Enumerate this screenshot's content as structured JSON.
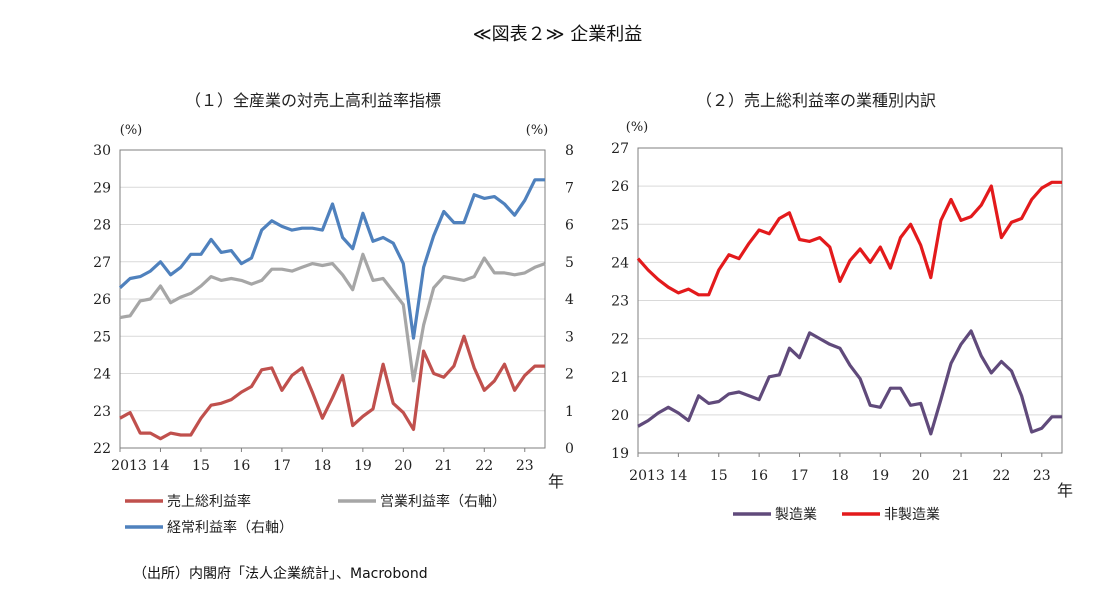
{
  "page": {
    "title": "≪図表２≫ 企業利益",
    "source": "（出所）内閣府「法人企業統計」、Macrobond"
  },
  "chart_data": [
    {
      "type": "line",
      "title": "（１）全産業の対売上高利益率指標",
      "x_ticks": [
        "2013",
        "14",
        "15",
        "16",
        "17",
        "18",
        "19",
        "20",
        "21",
        "22",
        "23"
      ],
      "x_unit": "年",
      "x_range": [
        2013.0,
        2023.5
      ],
      "left_axis": {
        "unit": "(%)",
        "range": [
          22,
          30
        ],
        "ticks": [
          22,
          23,
          24,
          25,
          26,
          27,
          28,
          29,
          30
        ]
      },
      "right_axis": {
        "unit": "(%)",
        "range": [
          0,
          8
        ],
        "ticks": [
          0,
          1,
          2,
          3,
          4,
          5,
          6,
          7,
          8
        ]
      },
      "grid": "horizontal",
      "legend_position": "bottom",
      "series": [
        {
          "name": "売上総利益率",
          "axis": "left",
          "color": "#c0504d",
          "x": [
            2013.0,
            2013.25,
            2013.5,
            2013.75,
            2014.0,
            2014.25,
            2014.5,
            2014.75,
            2015.0,
            2015.25,
            2015.5,
            2015.75,
            2016.0,
            2016.25,
            2016.5,
            2016.75,
            2017.0,
            2017.25,
            2017.5,
            2017.75,
            2018.0,
            2018.25,
            2018.5,
            2018.75,
            2019.0,
            2019.25,
            2019.5,
            2019.75,
            2020.0,
            2020.25,
            2020.5,
            2020.75,
            2021.0,
            2021.25,
            2021.5,
            2021.75,
            2022.0,
            2022.25,
            2022.5,
            2022.75,
            2023.0,
            2023.25,
            2023.5
          ],
          "values": [
            22.8,
            22.95,
            22.4,
            22.4,
            22.25,
            22.4,
            22.35,
            22.35,
            22.8,
            23.15,
            23.2,
            23.3,
            23.5,
            23.65,
            24.1,
            24.15,
            23.55,
            23.95,
            24.15,
            23.5,
            22.8,
            23.35,
            23.95,
            22.6,
            22.85,
            23.05,
            24.25,
            23.2,
            22.95,
            22.5,
            24.6,
            24.0,
            23.9,
            24.2,
            25.0,
            24.15,
            23.55,
            23.8,
            24.25,
            23.55,
            23.95,
            24.2,
            24.2
          ]
        },
        {
          "name": "営業利益率（右軸）",
          "axis": "right",
          "color": "#a6a6a6",
          "x": [
            2013.0,
            2013.25,
            2013.5,
            2013.75,
            2014.0,
            2014.25,
            2014.5,
            2014.75,
            2015.0,
            2015.25,
            2015.5,
            2015.75,
            2016.0,
            2016.25,
            2016.5,
            2016.75,
            2017.0,
            2017.25,
            2017.5,
            2017.75,
            2018.0,
            2018.25,
            2018.5,
            2018.75,
            2019.0,
            2019.25,
            2019.5,
            2019.75,
            2020.0,
            2020.25,
            2020.5,
            2020.75,
            2021.0,
            2021.25,
            2021.5,
            2021.75,
            2022.0,
            2022.25,
            2022.5,
            2022.75,
            2023.0,
            2023.25,
            2023.5
          ],
          "values": [
            3.5,
            3.55,
            3.95,
            4.0,
            4.35,
            3.9,
            4.05,
            4.15,
            4.35,
            4.6,
            4.5,
            4.55,
            4.5,
            4.4,
            4.5,
            4.8,
            4.8,
            4.75,
            4.85,
            4.95,
            4.9,
            4.95,
            4.65,
            4.25,
            5.2,
            4.5,
            4.55,
            4.2,
            3.85,
            1.8,
            3.3,
            4.3,
            4.6,
            4.55,
            4.5,
            4.6,
            5.1,
            4.7,
            4.7,
            4.65,
            4.7,
            4.85,
            4.95
          ]
        },
        {
          "name": "経常利益率（右軸）",
          "axis": "right",
          "color": "#4f81bd",
          "x": [
            2013.0,
            2013.25,
            2013.5,
            2013.75,
            2014.0,
            2014.25,
            2014.5,
            2014.75,
            2015.0,
            2015.25,
            2015.5,
            2015.75,
            2016.0,
            2016.25,
            2016.5,
            2016.75,
            2017.0,
            2017.25,
            2017.5,
            2017.75,
            2018.0,
            2018.25,
            2018.5,
            2018.75,
            2019.0,
            2019.25,
            2019.5,
            2019.75,
            2020.0,
            2020.25,
            2020.5,
            2020.75,
            2021.0,
            2021.25,
            2021.5,
            2021.75,
            2022.0,
            2022.25,
            2022.5,
            2022.75,
            2023.0,
            2023.25,
            2023.5
          ],
          "values": [
            4.3,
            4.55,
            4.6,
            4.75,
            5.0,
            4.65,
            4.85,
            5.2,
            5.2,
            5.6,
            5.25,
            5.3,
            4.95,
            5.1,
            5.85,
            6.1,
            5.95,
            5.85,
            5.9,
            5.9,
            5.85,
            6.55,
            5.65,
            5.35,
            6.3,
            5.55,
            5.65,
            5.5,
            4.95,
            2.95,
            4.85,
            5.7,
            6.35,
            6.05,
            6.05,
            6.8,
            6.7,
            6.75,
            6.55,
            6.25,
            6.65,
            7.2,
            7.2
          ]
        }
      ]
    },
    {
      "type": "line",
      "title": "（２）売上総利益率の業種別内訳",
      "x_ticks": [
        "2013",
        "14",
        "15",
        "16",
        "17",
        "18",
        "19",
        "20",
        "21",
        "22",
        "23"
      ],
      "x_unit": "年",
      "x_range": [
        2013.0,
        2023.5
      ],
      "y_axis": {
        "unit": "(%)",
        "range": [
          19,
          27
        ],
        "ticks": [
          19,
          20,
          21,
          22,
          23,
          24,
          25,
          26,
          27
        ]
      },
      "grid": "horizontal",
      "legend_position": "bottom",
      "series": [
        {
          "name": "製造業",
          "color": "#604a7b",
          "x": [
            2013.0,
            2013.25,
            2013.5,
            2013.75,
            2014.0,
            2014.25,
            2014.5,
            2014.75,
            2015.0,
            2015.25,
            2015.5,
            2015.75,
            2016.0,
            2016.25,
            2016.5,
            2016.75,
            2017.0,
            2017.25,
            2017.5,
            2017.75,
            2018.0,
            2018.25,
            2018.5,
            2018.75,
            2019.0,
            2019.25,
            2019.5,
            2019.75,
            2020.0,
            2020.25,
            2020.5,
            2020.75,
            2021.0,
            2021.25,
            2021.5,
            2021.75,
            2022.0,
            2022.25,
            2022.5,
            2022.75,
            2023.0,
            2023.25,
            2023.5
          ],
          "values": [
            19.7,
            19.85,
            20.05,
            20.2,
            20.05,
            19.85,
            20.5,
            20.3,
            20.35,
            20.55,
            20.6,
            20.5,
            20.4,
            21.0,
            21.05,
            21.75,
            21.5,
            22.15,
            22.0,
            21.85,
            21.75,
            21.3,
            20.95,
            20.25,
            20.2,
            20.7,
            20.7,
            20.25,
            20.3,
            19.5,
            20.4,
            21.35,
            21.85,
            22.2,
            21.55,
            21.1,
            21.4,
            21.15,
            20.5,
            19.55,
            19.65,
            19.95,
            19.95
          ]
        },
        {
          "name": "非製造業",
          "color": "#e31a1c",
          "x": [
            2013.0,
            2013.25,
            2013.5,
            2013.75,
            2014.0,
            2014.25,
            2014.5,
            2014.75,
            2015.0,
            2015.25,
            2015.5,
            2015.75,
            2016.0,
            2016.25,
            2016.5,
            2016.75,
            2017.0,
            2017.25,
            2017.5,
            2017.75,
            2018.0,
            2018.25,
            2018.5,
            2018.75,
            2019.0,
            2019.25,
            2019.5,
            2019.75,
            2020.0,
            2020.25,
            2020.5,
            2020.75,
            2021.0,
            2021.25,
            2021.5,
            2021.75,
            2022.0,
            2022.25,
            2022.5,
            2022.75,
            2023.0,
            2023.25,
            2023.5
          ],
          "values": [
            24.1,
            23.8,
            23.55,
            23.35,
            23.2,
            23.3,
            23.15,
            23.15,
            23.8,
            24.2,
            24.1,
            24.5,
            24.85,
            24.75,
            25.15,
            25.3,
            24.6,
            24.55,
            24.65,
            24.4,
            23.5,
            24.05,
            24.35,
            24.0,
            24.4,
            23.85,
            24.65,
            25.0,
            24.45,
            23.6,
            25.1,
            25.65,
            25.1,
            25.2,
            25.5,
            26.0,
            24.65,
            25.05,
            25.15,
            25.65,
            25.95,
            26.1,
            26.1
          ]
        }
      ]
    }
  ]
}
